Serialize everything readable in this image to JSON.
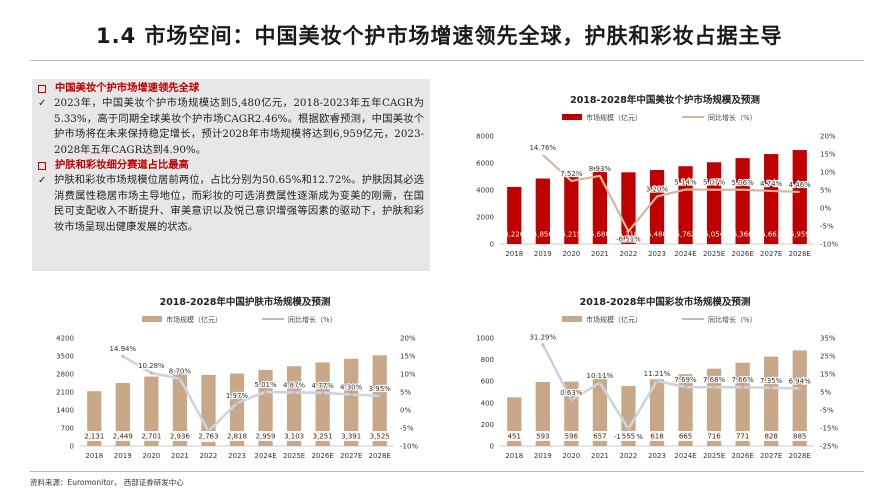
{
  "page": {
    "title": "1.4 市场空间：中国美妆个护市场增速领先全球，护肤和彩妆占据主导",
    "source": "资料来源：Euromonitor， 西部证券研发中心"
  },
  "summary": {
    "section1_heading": "中国美妆个护市场增速领先全球",
    "section1_text": "2023年，中国美妆个护市场规模达到5,480亿元，2018-2023年五年CAGR为5.33%，高于同期全球美妆个护市场CAGR2.46%。根据欧睿预测，中国美妆个护市场将在未来保持稳定增长，预计2028年市场规模将达到6,959亿元，2023-2028年五年CAGR达到4.90%。",
    "section2_heading": "护肤和彩妆细分赛道占比最高",
    "section2_text": "护肤和彩妆市场规模位居前两位，占比分别为50.65%和12.72%。护肤因其必选消费属性稳居市场主导地位，而彩妆的可选消费属性逐渐成为变美的刚需，在国民可支配收入不断提升、审美意识以及悦己意识增强等因素的驱动下，护肤和彩妆市场呈现出健康发展的状态。",
    "check_glyph": "✓"
  },
  "chart_data": [
    {
      "type": "bar",
      "title": "2018-2028年中国美妆个护市场规模及预测",
      "categories": [
        "2018",
        "2019",
        "2020",
        "2021",
        "2022",
        "2023",
        "2024E",
        "2025E",
        "2026E",
        "2027E",
        "2028E"
      ],
      "series": [
        {
          "name": "市场规模（亿元）",
          "type": "bar",
          "axis": "left",
          "color": "#c00000",
          "label_color": "#ffffff",
          "values": [
            4226,
            4850,
            5215,
            5680,
            5310,
            5480,
            5762,
            6054,
            6360,
            6661,
            6959
          ],
          "labels": [
            "4,226",
            "4,850",
            "5,215",
            "5,680",
            "5,310",
            "5,480",
            "5,762",
            "6,054",
            "6,360",
            "6,661",
            "6,959"
          ]
        },
        {
          "name": "同比增长（%）",
          "type": "line",
          "axis": "right",
          "color": "#d5b79c",
          "marker": false,
          "values": [
            null,
            14.76,
            7.52,
            8.93,
            -6.51,
            3.2,
            5.14,
            5.07,
            5.06,
            4.74,
            4.46
          ],
          "labels": [
            "",
            "14.76%",
            "7.52%",
            "8.93%",
            "-6.51%",
            "3.20%",
            "5.14%",
            "5.07%",
            "5.06%",
            "4.74%",
            "4.46%"
          ]
        }
      ],
      "y_left": {
        "min": 0,
        "max": 8000,
        "step": 2000,
        "ticks": [
          "0",
          "2000",
          "4000",
          "6000",
          "8000"
        ]
      },
      "y_right": {
        "min": -10,
        "max": 20,
        "step": 5,
        "ticks": [
          "-10%",
          "-5%",
          "0%",
          "5%",
          "10%",
          "15%",
          "20%"
        ]
      },
      "legend_placement": "top"
    },
    {
      "type": "bar",
      "title": "2018-2028年中国护肤市场规模及预测",
      "categories": [
        "2018",
        "2019",
        "2020",
        "2021",
        "2022",
        "2023",
        "2024E",
        "2025E",
        "2026E",
        "2027E",
        "2028E"
      ],
      "series": [
        {
          "name": "市场规模（亿元）",
          "type": "bar",
          "axis": "left",
          "color": "#c8a888",
          "label_color": "#333333",
          "values": [
            2131,
            2449,
            2701,
            2936,
            2763,
            2818,
            2959,
            3103,
            3251,
            3391,
            3525
          ],
          "labels": [
            "2,131",
            "2,449",
            "2,701",
            "2,936",
            "2,763",
            "2,818",
            "2,959",
            "3,103",
            "3,251",
            "3,391",
            "3,525"
          ]
        },
        {
          "name": "同比增长（%）",
          "type": "line",
          "axis": "right",
          "color": "#cdd4de",
          "marker": true,
          "values": [
            null,
            14.94,
            10.28,
            8.7,
            -5.87,
            1.97,
            5.01,
            4.87,
            4.77,
            4.3,
            3.95
          ],
          "labels": [
            "",
            "14.94%",
            "10.28%",
            "8.70%",
            "-5.87%",
            "1.97%",
            "5.01%",
            "4.87%",
            "4.77%",
            "4.30%",
            "3.95%"
          ]
        }
      ],
      "y_left": {
        "min": 0,
        "max": 4200,
        "step": 700,
        "ticks": [
          "0",
          "700",
          "1400",
          "2100",
          "2800",
          "3500",
          "4200"
        ]
      },
      "y_right": {
        "min": -10,
        "max": 20,
        "step": 5,
        "ticks": [
          "-10%",
          "-5%",
          "0%",
          "5%",
          "10%",
          "15%",
          "20%"
        ]
      },
      "legend_placement": "top"
    },
    {
      "type": "bar",
      "title": "2018-2028年中国彩妆市场规模及预测",
      "categories": [
        "2018",
        "2019",
        "2020",
        "2021",
        "2022",
        "2023",
        "2024E",
        "2025E",
        "2026E",
        "2027E",
        "2028E"
      ],
      "series": [
        {
          "name": "市场规模（亿元）",
          "type": "bar",
          "axis": "left",
          "color": "#c8a888",
          "label_color": "#333333",
          "values": [
            451,
            593,
            596,
            657,
            555,
            618,
            665,
            716,
            771,
            828,
            885
          ],
          "labels": [
            "451",
            "593",
            "596",
            "657",
            "555",
            "618",
            "665",
            "716",
            "771",
            "828",
            "885"
          ]
        },
        {
          "name": "同比增长（%）",
          "type": "line",
          "axis": "right",
          "color": "#cdd4de",
          "marker": true,
          "values": [
            null,
            31.29,
            0.63,
            10.11,
            -15.42,
            11.21,
            7.69,
            7.68,
            7.66,
            7.35,
            6.94
          ],
          "labels": [
            "",
            "31.29%",
            "0.63%",
            "10.11%",
            "-15.42%",
            "11.21%",
            "7.69%",
            "7.68%",
            "7.66%",
            "7.35%",
            "6.94%"
          ]
        }
      ],
      "y_left": {
        "min": 0,
        "max": 1000,
        "step": 200,
        "ticks": [
          "0",
          "200",
          "400",
          "600",
          "800",
          "1000"
        ]
      },
      "y_right": {
        "min": -25,
        "max": 35,
        "step": 10,
        "ticks": [
          "-25%",
          "-15%",
          "-5%",
          "5%",
          "15%",
          "25%",
          "35%"
        ]
      },
      "legend_placement": "top"
    }
  ]
}
